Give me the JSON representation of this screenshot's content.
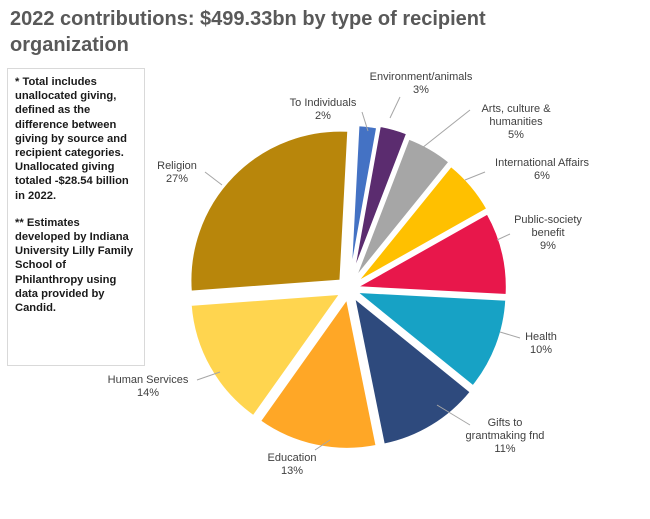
{
  "title": "2022 contributions: $499.33bn by type of recipient organization",
  "notes": [
    "* Total includes unallocated giving, defined as the difference between giving by source and recipient categories. Unallocated giving totaled -$28.54 billion in 2022.",
    "** Estimates developed by Indiana University Lilly Family School of Philanthropy using data provided by Candid."
  ],
  "chart_data": {
    "type": "pie",
    "slices": [
      {
        "label": "To Individuals",
        "pct_label": "2%",
        "value": 2,
        "color": "#4472c4"
      },
      {
        "label": "Environment/animals",
        "pct_label": "3%",
        "value": 3,
        "color": "#5b2c6f"
      },
      {
        "label": "Arts, culture & humanities",
        "pct_label": "5%",
        "value": 5,
        "color": "#a6a6a6"
      },
      {
        "label": "International Affairs",
        "pct_label": "6%",
        "value": 6,
        "color": "#ffc000"
      },
      {
        "label": "Public-society benefit",
        "pct_label": "9%",
        "value": 9,
        "color": "#e8174b"
      },
      {
        "label": "Health",
        "pct_label": "10%",
        "value": 10,
        "color": "#17a2c5"
      },
      {
        "label": "Gifts to grantmaking fnd",
        "pct_label": "11%",
        "value": 11,
        "color": "#2e4a7d"
      },
      {
        "label": "Education",
        "pct_label": "13%",
        "value": 13,
        "color": "#ffa726"
      },
      {
        "label": "Human Services",
        "pct_label": "14%",
        "value": 14,
        "color": "#ffd54f"
      },
      {
        "label": "Religion",
        "pct_label": "27%",
        "value": 27,
        "color": "#b8860b"
      }
    ]
  }
}
